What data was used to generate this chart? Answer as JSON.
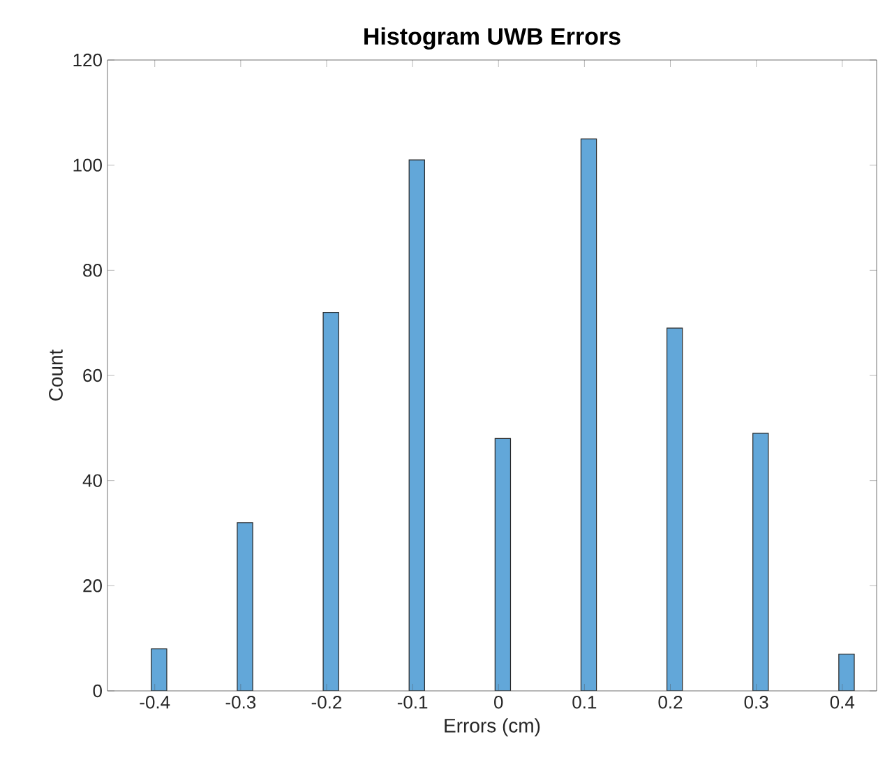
{
  "chart_data": {
    "type": "histogram",
    "title": "Histogram UWB Errors",
    "xlabel": "Errors (cm)",
    "ylabel": "Count",
    "bins": [
      -0.404,
      -0.386,
      -0.304,
      -0.286,
      -0.204,
      -0.186,
      -0.104,
      -0.086,
      -0.004,
      0.014,
      0.096,
      0.114,
      0.196,
      0.214,
      0.296,
      0.314,
      0.396,
      0.414
    ],
    "values": [
      8,
      0,
      32,
      0,
      72,
      0,
      101,
      0,
      48,
      0,
      105,
      0,
      69,
      0,
      49,
      0,
      7
    ],
    "color": "#62a7d9",
    "xlim": [
      -0.455,
      0.44
    ],
    "ylim": [
      0,
      120
    ],
    "xticks": [
      -0.4,
      -0.3,
      -0.2,
      -0.1,
      0,
      0.1,
      0.2,
      0.3,
      0.4
    ],
    "yticks": [
      0,
      20,
      40,
      60,
      80,
      100,
      120
    ],
    "grid": false
  }
}
